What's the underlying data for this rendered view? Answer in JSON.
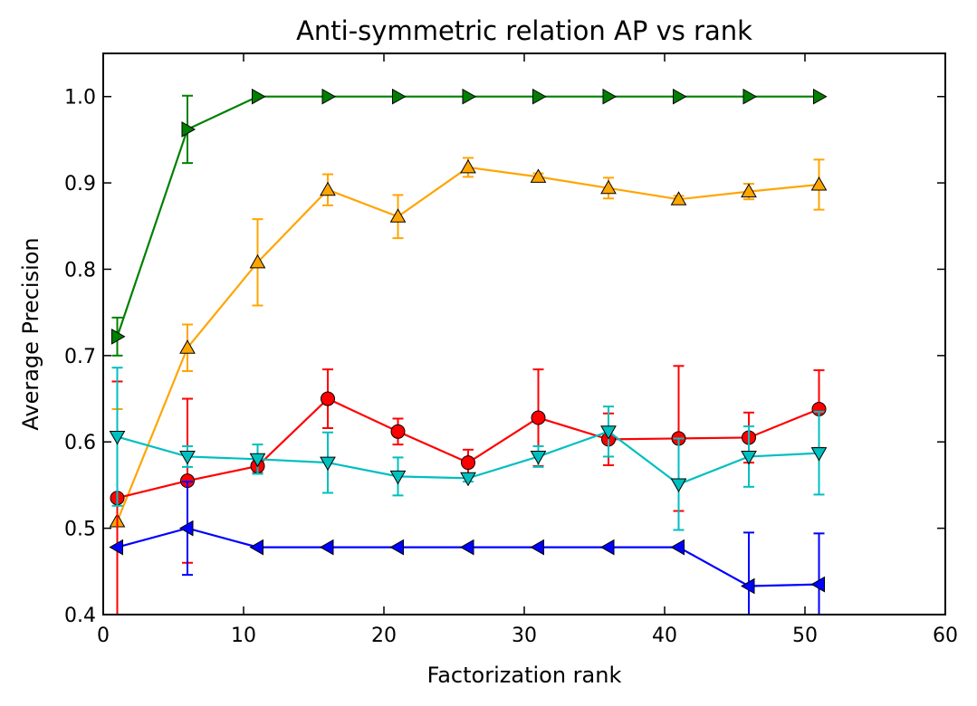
{
  "chart_data": {
    "type": "line",
    "title": "Anti-symmetric relation AP vs rank",
    "xlabel": "Factorization rank",
    "ylabel": "Average Precision",
    "xlim": [
      0,
      60
    ],
    "ylim": [
      0.4,
      1.05
    ],
    "xticks": [
      "0",
      "10",
      "20",
      "30",
      "40",
      "50",
      "60"
    ],
    "yticks": [
      "0.4",
      "0.5",
      "0.6",
      "0.7",
      "0.8",
      "0.9",
      "1.0"
    ],
    "grid": false,
    "x": [
      1,
      6,
      11,
      16,
      21,
      26,
      31,
      36,
      41,
      46,
      51
    ],
    "series": [
      {
        "color": "#008000",
        "marker": "triangle-right",
        "values": [
          0.722,
          0.962,
          1.0,
          1.0,
          1.0,
          1.0,
          1.0,
          1.0,
          1.0,
          1.0,
          1.0
        ],
        "errors": [
          0.022,
          0.039,
          0,
          0,
          0,
          0,
          0,
          0,
          0,
          0,
          0
        ]
      },
      {
        "color": "#ffa500",
        "marker": "triangle-up",
        "values": [
          0.508,
          0.709,
          0.808,
          0.892,
          0.861,
          0.918,
          0.907,
          0.894,
          0.881,
          0.89,
          0.898
        ],
        "errors": [
          0.13,
          0.027,
          0.05,
          0.018,
          0.025,
          0.011,
          0.004,
          0.012,
          0.004,
          0.009,
          0.029
        ]
      },
      {
        "color": "#ff0000",
        "marker": "circle",
        "values": [
          0.535,
          0.555,
          0.572,
          0.65,
          0.612,
          0.576,
          0.628,
          0.603,
          0.604,
          0.605,
          0.638
        ],
        "errors": [
          0.135,
          0.095,
          0.008,
          0.034,
          0.015,
          0.015,
          0.056,
          0.03,
          0.084,
          0.029,
          0.045
        ]
      },
      {
        "color": "#00bfbf",
        "marker": "triangle-down",
        "values": [
          0.606,
          0.583,
          0.58,
          0.576,
          0.56,
          0.558,
          0.583,
          0.612,
          0.551,
          0.583,
          0.587
        ],
        "errors": [
          0.08,
          0.012,
          0.017,
          0.035,
          0.022,
          0.004,
          0.012,
          0.029,
          0.053,
          0.035,
          0.048
        ]
      },
      {
        "color": "#0000ff",
        "marker": "triangle-left",
        "values": [
          0.478,
          0.5,
          0.478,
          0.478,
          0.478,
          0.478,
          0.478,
          0.478,
          0.478,
          0.433,
          0.435
        ],
        "errors": [
          0,
          0.054,
          0,
          0,
          0,
          0,
          0,
          0,
          0,
          0.062,
          0.059
        ]
      }
    ]
  }
}
